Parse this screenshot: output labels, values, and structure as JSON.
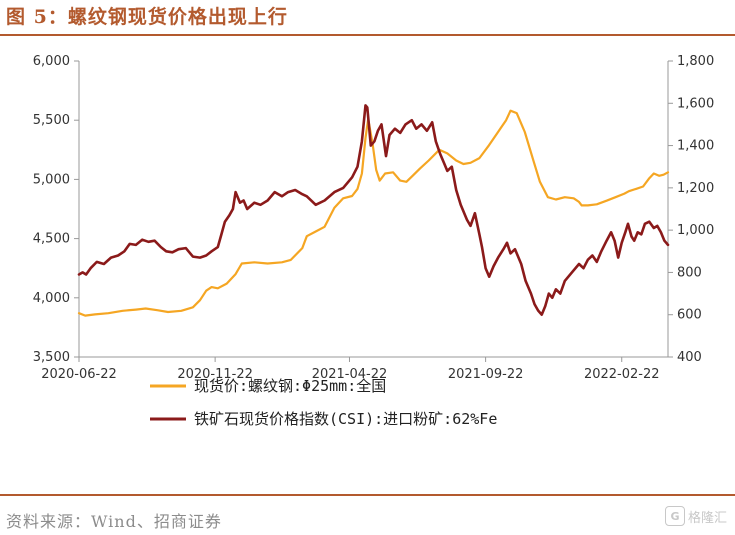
{
  "title": "图 5：螺纹钢现货价格出现上行",
  "source": "资料来源：Wind、招商证券",
  "watermark": {
    "logo": "G",
    "text": "格隆汇"
  },
  "colors": {
    "accent": "#b35a2e",
    "rebar": "#f5a623",
    "iron_ore": "#8b1a1a"
  },
  "chart_data": {
    "type": "line",
    "title": "",
    "x_ticks": [
      "2020-06-22",
      "2020-11-22",
      "2021-04-22",
      "2021-09-22",
      "2022-02-22"
    ],
    "xlim": [
      "2020-06-22",
      "2022-04-15"
    ],
    "y_left": {
      "ticks": [
        "3,500",
        "4,000",
        "4,500",
        "5,000",
        "5,500",
        "6,000"
      ],
      "ylim": [
        3500,
        6000
      ]
    },
    "y_right": {
      "ticks": [
        "400",
        "600",
        "800",
        "1,000",
        "1,200",
        "1,400",
        "1,600",
        "1,800"
      ],
      "ylim": [
        400,
        1800
      ]
    },
    "grid": false,
    "legend_position": "bottom",
    "series": [
      {
        "name": "现货价:螺纹钢:Φ25mm:全国",
        "axis": "left",
        "color": "#f5a623",
        "points": [
          [
            "2020-06-22",
            3870
          ],
          [
            "2020-06-29",
            3850
          ],
          [
            "2020-07-10",
            3860
          ],
          [
            "2020-07-25",
            3870
          ],
          [
            "2020-08-10",
            3890
          ],
          [
            "2020-08-25",
            3900
          ],
          [
            "2020-09-05",
            3910
          ],
          [
            "2020-09-18",
            3895
          ],
          [
            "2020-09-30",
            3880
          ],
          [
            "2020-10-15",
            3890
          ],
          [
            "2020-10-28",
            3920
          ],
          [
            "2020-11-05",
            3980
          ],
          [
            "2020-11-12",
            4060
          ],
          [
            "2020-11-18",
            4090
          ],
          [
            "2020-11-25",
            4080
          ],
          [
            "2020-12-05",
            4120
          ],
          [
            "2020-12-15",
            4200
          ],
          [
            "2020-12-22",
            4290
          ],
          [
            "2021-01-05",
            4300
          ],
          [
            "2021-01-20",
            4290
          ],
          [
            "2021-02-05",
            4300
          ],
          [
            "2021-02-15",
            4320
          ],
          [
            "2021-02-28",
            4420
          ],
          [
            "2021-03-05",
            4520
          ],
          [
            "2021-03-15",
            4560
          ],
          [
            "2021-03-25",
            4600
          ],
          [
            "2021-04-05",
            4760
          ],
          [
            "2021-04-15",
            4840
          ],
          [
            "2021-04-25",
            4860
          ],
          [
            "2021-05-01",
            4920
          ],
          [
            "2021-05-06",
            5050
          ],
          [
            "2021-05-10",
            5350
          ],
          [
            "2021-05-13",
            5510
          ],
          [
            "2021-05-18",
            5300
          ],
          [
            "2021-05-22",
            5080
          ],
          [
            "2021-05-26",
            4990
          ],
          [
            "2021-06-01",
            5050
          ],
          [
            "2021-06-10",
            5060
          ],
          [
            "2021-06-18",
            4990
          ],
          [
            "2021-06-25",
            4980
          ],
          [
            "2021-07-02",
            5030
          ],
          [
            "2021-07-10",
            5090
          ],
          [
            "2021-07-20",
            5160
          ],
          [
            "2021-08-01",
            5250
          ],
          [
            "2021-08-10",
            5220
          ],
          [
            "2021-08-20",
            5160
          ],
          [
            "2021-08-28",
            5130
          ],
          [
            "2021-09-05",
            5140
          ],
          [
            "2021-09-15",
            5180
          ],
          [
            "2021-09-25",
            5280
          ],
          [
            "2021-10-05",
            5390
          ],
          [
            "2021-10-15",
            5500
          ],
          [
            "2021-10-20",
            5580
          ],
          [
            "2021-10-27",
            5560
          ],
          [
            "2021-11-05",
            5400
          ],
          [
            "2021-11-15",
            5150
          ],
          [
            "2021-11-22",
            4980
          ],
          [
            "2021-12-01",
            4850
          ],
          [
            "2021-12-10",
            4830
          ],
          [
            "2021-12-20",
            4850
          ],
          [
            "2021-12-30",
            4840
          ],
          [
            "2022-01-05",
            4810
          ],
          [
            "2022-01-08",
            4780
          ],
          [
            "2022-01-15",
            4780
          ],
          [
            "2022-01-25",
            4790
          ],
          [
            "2022-02-05",
            4820
          ],
          [
            "2022-02-15",
            4850
          ],
          [
            "2022-02-25",
            4880
          ],
          [
            "2022-03-02",
            4900
          ],
          [
            "2022-03-10",
            4920
          ],
          [
            "2022-03-18",
            4940
          ],
          [
            "2022-03-25",
            5010
          ],
          [
            "2022-03-30",
            5050
          ],
          [
            "2022-04-05",
            5030
          ],
          [
            "2022-04-10",
            5040
          ],
          [
            "2022-04-15",
            5060
          ]
        ]
      },
      {
        "name": "铁矿石现货价格指数(CSI):进口粉矿:62%Fe",
        "axis": "right",
        "color": "#8b1a1a",
        "points": [
          [
            "2020-06-22",
            790
          ],
          [
            "2020-06-26",
            800
          ],
          [
            "2020-06-30",
            790
          ],
          [
            "2020-07-05",
            820
          ],
          [
            "2020-07-12",
            850
          ],
          [
            "2020-07-20",
            840
          ],
          [
            "2020-07-28",
            870
          ],
          [
            "2020-08-05",
            880
          ],
          [
            "2020-08-12",
            900
          ],
          [
            "2020-08-18",
            935
          ],
          [
            "2020-08-25",
            930
          ],
          [
            "2020-09-01",
            955
          ],
          [
            "2020-09-08",
            945
          ],
          [
            "2020-09-15",
            950
          ],
          [
            "2020-09-22",
            920
          ],
          [
            "2020-09-28",
            900
          ],
          [
            "2020-10-05",
            895
          ],
          [
            "2020-10-12",
            910
          ],
          [
            "2020-10-20",
            915
          ],
          [
            "2020-10-28",
            875
          ],
          [
            "2020-11-05",
            870
          ],
          [
            "2020-11-12",
            880
          ],
          [
            "2020-11-18",
            900
          ],
          [
            "2020-11-25",
            920
          ],
          [
            "2020-11-29",
            980
          ],
          [
            "2020-12-03",
            1040
          ],
          [
            "2020-12-08",
            1070
          ],
          [
            "2020-12-12",
            1100
          ],
          [
            "2020-12-15",
            1180
          ],
          [
            "2020-12-20",
            1130
          ],
          [
            "2020-12-24",
            1140
          ],
          [
            "2020-12-28",
            1100
          ],
          [
            "2021-01-05",
            1130
          ],
          [
            "2021-01-12",
            1120
          ],
          [
            "2021-01-20",
            1140
          ],
          [
            "2021-01-28",
            1180
          ],
          [
            "2021-02-05",
            1160
          ],
          [
            "2021-02-12",
            1180
          ],
          [
            "2021-02-20",
            1190
          ],
          [
            "2021-02-28",
            1170
          ],
          [
            "2021-03-05",
            1160
          ],
          [
            "2021-03-15",
            1120
          ],
          [
            "2021-03-25",
            1140
          ],
          [
            "2021-04-05",
            1180
          ],
          [
            "2021-04-15",
            1200
          ],
          [
            "2021-04-25",
            1250
          ],
          [
            "2021-05-01",
            1300
          ],
          [
            "2021-05-06",
            1420
          ],
          [
            "2021-05-10",
            1590
          ],
          [
            "2021-05-12",
            1580
          ],
          [
            "2021-05-16",
            1400
          ],
          [
            "2021-05-20",
            1420
          ],
          [
            "2021-05-24",
            1470
          ],
          [
            "2021-05-28",
            1500
          ],
          [
            "2021-06-02",
            1350
          ],
          [
            "2021-06-06",
            1450
          ],
          [
            "2021-06-12",
            1480
          ],
          [
            "2021-06-18",
            1460
          ],
          [
            "2021-06-24",
            1500
          ],
          [
            "2021-07-01",
            1520
          ],
          [
            "2021-07-06",
            1480
          ],
          [
            "2021-07-12",
            1500
          ],
          [
            "2021-07-18",
            1470
          ],
          [
            "2021-07-24",
            1510
          ],
          [
            "2021-07-28",
            1420
          ],
          [
            "2021-08-02",
            1360
          ],
          [
            "2021-08-06",
            1320
          ],
          [
            "2021-08-10",
            1280
          ],
          [
            "2021-08-15",
            1300
          ],
          [
            "2021-08-20",
            1190
          ],
          [
            "2021-08-25",
            1120
          ],
          [
            "2021-09-01",
            1050
          ],
          [
            "2021-09-05",
            1020
          ],
          [
            "2021-09-10",
            1080
          ],
          [
            "2021-09-15",
            980
          ],
          [
            "2021-09-18",
            920
          ],
          [
            "2021-09-22",
            820
          ],
          [
            "2021-09-26",
            780
          ],
          [
            "2021-10-01",
            830
          ],
          [
            "2021-10-06",
            870
          ],
          [
            "2021-10-12",
            910
          ],
          [
            "2021-10-16",
            940
          ],
          [
            "2021-10-20",
            890
          ],
          [
            "2021-10-25",
            910
          ],
          [
            "2021-11-01",
            840
          ],
          [
            "2021-11-06",
            760
          ],
          [
            "2021-11-12",
            700
          ],
          [
            "2021-11-16",
            650
          ],
          [
            "2021-11-20",
            620
          ],
          [
            "2021-11-24",
            600
          ],
          [
            "2021-11-28",
            640
          ],
          [
            "2021-12-02",
            700
          ],
          [
            "2021-12-06",
            680
          ],
          [
            "2021-12-10",
            720
          ],
          [
            "2021-12-15",
            700
          ],
          [
            "2021-12-20",
            760
          ],
          [
            "2021-12-28",
            800
          ],
          [
            "2022-01-05",
            840
          ],
          [
            "2022-01-10",
            820
          ],
          [
            "2022-01-15",
            860
          ],
          [
            "2022-01-20",
            880
          ],
          [
            "2022-01-25",
            850
          ],
          [
            "2022-01-30",
            900
          ],
          [
            "2022-02-05",
            950
          ],
          [
            "2022-02-10",
            990
          ],
          [
            "2022-02-14",
            950
          ],
          [
            "2022-02-18",
            870
          ],
          [
            "2022-02-22",
            940
          ],
          [
            "2022-02-26",
            990
          ],
          [
            "2022-03-01",
            1030
          ],
          [
            "2022-03-05",
            970
          ],
          [
            "2022-03-08",
            950
          ],
          [
            "2022-03-12",
            990
          ],
          [
            "2022-03-16",
            980
          ],
          [
            "2022-03-20",
            1030
          ],
          [
            "2022-03-25",
            1040
          ],
          [
            "2022-03-30",
            1010
          ],
          [
            "2022-04-03",
            1020
          ],
          [
            "2022-04-07",
            990
          ],
          [
            "2022-04-11",
            950
          ],
          [
            "2022-04-15",
            930
          ]
        ]
      }
    ]
  }
}
